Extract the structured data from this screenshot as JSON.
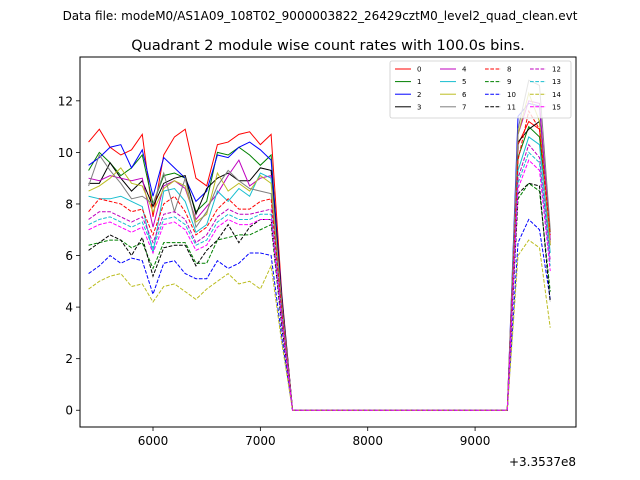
{
  "figure": {
    "suptitle": "Data file: modeM0/AS1A09_108T02_9000003822_26429cztM0_level2_quad_clean.evt"
  },
  "chart_data": {
    "type": "line",
    "title": "Quadrant 2 module wise count rates with 100.0s bins.",
    "xlabel": "",
    "ylabel": "",
    "x_offset_label": "+3.3537e8",
    "xlim": [
      5320,
      9940
    ],
    "ylim": [
      -0.65,
      13.7
    ],
    "x_ticks": [
      6000,
      7000,
      8000,
      9000
    ],
    "x_tick_labels": [
      "6000",
      "7000",
      "8000",
      "9000"
    ],
    "y_ticks": [
      0,
      2,
      4,
      6,
      8,
      10,
      12
    ],
    "y_tick_labels": [
      "0",
      "2",
      "4",
      "6",
      "8",
      "10",
      "12"
    ],
    "legend_position": "top-right",
    "legend_columns": 4,
    "x": [
      5400,
      5500,
      5600,
      5700,
      5800,
      5900,
      6000,
      6100,
      6200,
      6300,
      6400,
      6500,
      6600,
      6700,
      6800,
      6900,
      7000,
      7100,
      7200,
      7300,
      7400,
      7500,
      7600,
      7700,
      7800,
      7900,
      8000,
      8100,
      8200,
      8300,
      8400,
      8500,
      8600,
      8700,
      8800,
      8900,
      9000,
      9100,
      9200,
      9300,
      9400,
      9500,
      9600,
      9700
    ],
    "series": [
      {
        "name": "0",
        "color": "#ff0000",
        "dash": "solid",
        "values": [
          10.4,
          10.9,
          10.2,
          9.9,
          10.1,
          10.7,
          7.5,
          9.9,
          10.6,
          10.9,
          9.0,
          8.7,
          10.3,
          10.4,
          10.7,
          10.8,
          10.3,
          10.7,
          4.5,
          0,
          0,
          0,
          0,
          0,
          0,
          0,
          0,
          0,
          0,
          0,
          0,
          0,
          0,
          0,
          0,
          0,
          0,
          0,
          0,
          0,
          10.3,
          11.2,
          10.9,
          6.5
        ]
      },
      {
        "name": "1",
        "color": "#008000",
        "dash": "solid",
        "values": [
          9.3,
          10.0,
          9.6,
          9.1,
          9.4,
          9.9,
          8.0,
          9.1,
          9.2,
          9.0,
          7.7,
          8.1,
          10.0,
          9.9,
          10.2,
          9.9,
          9.5,
          9.9,
          4.2,
          0,
          0,
          0,
          0,
          0,
          0,
          0,
          0,
          0,
          0,
          0,
          0,
          0,
          0,
          0,
          0,
          0,
          0,
          0,
          0,
          0,
          9.8,
          11.0,
          10.6,
          6.9
        ]
      },
      {
        "name": "2",
        "color": "#0000ff",
        "dash": "solid",
        "values": [
          9.5,
          9.8,
          10.2,
          10.3,
          9.4,
          10.1,
          8.3,
          9.8,
          9.4,
          9.0,
          8.1,
          8.5,
          9.9,
          9.8,
          10.2,
          10.4,
          10.1,
          9.7,
          4.4,
          0,
          0,
          0,
          0,
          0,
          0,
          0,
          0,
          0,
          0,
          0,
          0,
          0,
          0,
          0,
          0,
          0,
          0,
          0,
          0,
          0,
          11.4,
          11.9,
          11.8,
          6.6
        ]
      },
      {
        "name": "3",
        "color": "#000000",
        "dash": "solid",
        "values": [
          8.8,
          8.8,
          9.6,
          9.0,
          8.5,
          8.9,
          7.9,
          8.8,
          9.0,
          9.1,
          7.6,
          8.6,
          9.0,
          9.2,
          8.9,
          8.9,
          9.4,
          9.3,
          4.3,
          0,
          0,
          0,
          0,
          0,
          0,
          0,
          0,
          0,
          0,
          0,
          0,
          0,
          0,
          0,
          0,
          0,
          0,
          0,
          0,
          0,
          10.4,
          10.9,
          11.2,
          6.4
        ]
      },
      {
        "name": "4",
        "color": "#bf00bf",
        "dash": "solid",
        "values": [
          9.0,
          8.9,
          9.1,
          9.0,
          8.9,
          9.0,
          7.1,
          8.7,
          8.9,
          8.6,
          7.4,
          7.9,
          8.4,
          9.1,
          9.7,
          8.7,
          9.0,
          9.1,
          4.1,
          0,
          0,
          0,
          0,
          0,
          0,
          0,
          0,
          0,
          0,
          0,
          0,
          0,
          0,
          0,
          0,
          0,
          0,
          0,
          0,
          0,
          10.7,
          12.0,
          11.9,
          6.6
        ]
      },
      {
        "name": "5",
        "color": "#17becf",
        "dash": "solid",
        "values": [
          8.3,
          8.2,
          8.2,
          8.3,
          8.1,
          7.9,
          6.1,
          8.5,
          8.6,
          8.1,
          6.9,
          7.2,
          8.5,
          8.1,
          8.6,
          8.3,
          9.2,
          9.0,
          4.0,
          0,
          0,
          0,
          0,
          0,
          0,
          0,
          0,
          0,
          0,
          0,
          0,
          0,
          0,
          0,
          0,
          0,
          0,
          0,
          0,
          0,
          9.3,
          10.6,
          10.3,
          6.1
        ]
      },
      {
        "name": "6",
        "color": "#bcbd22",
        "dash": "solid",
        "values": [
          8.5,
          8.7,
          9.0,
          9.4,
          8.8,
          8.7,
          7.7,
          8.6,
          8.9,
          8.7,
          7.3,
          7.6,
          9.2,
          8.5,
          8.8,
          8.5,
          9.1,
          8.8,
          4.1,
          0,
          0,
          0,
          0,
          0,
          0,
          0,
          0,
          0,
          0,
          0,
          0,
          0,
          0,
          0,
          0,
          0,
          0,
          0,
          0,
          0,
          10.7,
          12.3,
          11.2,
          6.4
        ]
      },
      {
        "name": "7",
        "color": "#7f7f7f",
        "dash": "solid",
        "values": [
          8.7,
          9.9,
          9.3,
          8.8,
          8.2,
          8.3,
          8.0,
          9.2,
          7.7,
          9.0,
          7.1,
          7.7,
          8.7,
          9.3,
          8.9,
          8.6,
          8.5,
          8.4,
          4.0,
          0,
          0,
          0,
          0,
          0,
          0,
          0,
          0,
          0,
          0,
          0,
          0,
          0,
          0,
          0,
          0,
          0,
          0,
          0,
          0,
          0,
          10.9,
          12.8,
          12.6,
          7.0
        ]
      },
      {
        "name": "8",
        "color": "#ff0000",
        "dash": "dashed",
        "values": [
          7.7,
          8.2,
          8.1,
          8.0,
          7.7,
          7.8,
          6.8,
          8.0,
          8.3,
          7.7,
          6.8,
          7.1,
          7.8,
          8.2,
          7.8,
          7.8,
          8.1,
          8.2,
          3.8,
          0,
          0,
          0,
          0,
          0,
          0,
          0,
          0,
          0,
          0,
          0,
          0,
          0,
          0,
          0,
          0,
          0,
          0,
          0,
          0,
          0,
          9.7,
          11.6,
          10.9,
          6.8
        ]
      },
      {
        "name": "9",
        "color": "#008000",
        "dash": "dashed",
        "values": [
          6.4,
          6.5,
          6.6,
          6.6,
          6.3,
          6.5,
          5.5,
          6.5,
          6.5,
          6.5,
          5.7,
          5.7,
          6.6,
          6.7,
          6.8,
          6.8,
          7.0,
          7.2,
          3.2,
          0,
          0,
          0,
          0,
          0,
          0,
          0,
          0,
          0,
          0,
          0,
          0,
          0,
          0,
          0,
          0,
          0,
          0,
          0,
          0,
          0,
          8.2,
          8.8,
          8.5,
          4.6
        ]
      },
      {
        "name": "10",
        "color": "#0000ff",
        "dash": "dashed",
        "values": [
          5.3,
          5.6,
          6.0,
          5.7,
          5.9,
          5.8,
          4.5,
          5.7,
          5.8,
          5.3,
          5.1,
          5.1,
          5.8,
          5.5,
          5.7,
          6.1,
          6.1,
          6.0,
          2.8,
          0,
          0,
          0,
          0,
          0,
          0,
          0,
          0,
          0,
          0,
          0,
          0,
          0,
          0,
          0,
          0,
          0,
          0,
          0,
          0,
          0,
          6.5,
          7.4,
          7.0,
          4.3
        ]
      },
      {
        "name": "11",
        "color": "#000000",
        "dash": "dashed",
        "values": [
          6.2,
          6.5,
          6.8,
          6.6,
          6.0,
          6.7,
          5.2,
          6.3,
          6.4,
          6.4,
          5.6,
          6.2,
          6.6,
          7.2,
          6.5,
          7.1,
          7.4,
          7.4,
          3.3,
          0,
          0,
          0,
          0,
          0,
          0,
          0,
          0,
          0,
          0,
          0,
          0,
          0,
          0,
          0,
          0,
          0,
          0,
          0,
          0,
          0,
          8.4,
          8.8,
          8.7,
          4.2
        ]
      },
      {
        "name": "12",
        "color": "#bf00bf",
        "dash": "dashed",
        "values": [
          7.4,
          7.7,
          7.7,
          7.5,
          7.3,
          7.5,
          6.5,
          7.6,
          7.7,
          7.4,
          6.5,
          6.8,
          7.5,
          7.8,
          7.6,
          7.6,
          7.7,
          7.8,
          3.6,
          0,
          0,
          0,
          0,
          0,
          0,
          0,
          0,
          0,
          0,
          0,
          0,
          0,
          0,
          0,
          0,
          0,
          0,
          0,
          0,
          0,
          9.0,
          10.3,
          9.8,
          5.8
        ]
      },
      {
        "name": "13",
        "color": "#17becf",
        "dash": "dashed",
        "values": [
          7.2,
          7.4,
          7.5,
          7.3,
          7.1,
          7.3,
          6.3,
          7.4,
          7.5,
          7.2,
          6.4,
          6.6,
          7.3,
          7.6,
          7.4,
          7.4,
          7.6,
          7.6,
          3.5,
          0,
          0,
          0,
          0,
          0,
          0,
          0,
          0,
          0,
          0,
          0,
          0,
          0,
          0,
          0,
          0,
          0,
          0,
          0,
          0,
          0,
          8.8,
          10.0,
          9.6,
          5.6
        ]
      },
      {
        "name": "14",
        "color": "#bcbd22",
        "dash": "dashed",
        "values": [
          4.7,
          5.0,
          5.2,
          5.3,
          4.8,
          4.9,
          4.2,
          4.8,
          4.9,
          4.6,
          4.3,
          4.7,
          5.0,
          5.3,
          4.9,
          5.0,
          4.7,
          5.6,
          2.6,
          0,
          0,
          0,
          0,
          0,
          0,
          0,
          0,
          0,
          0,
          0,
          0,
          0,
          0,
          0,
          0,
          0,
          0,
          0,
          0,
          0,
          6.0,
          6.6,
          6.3,
          3.2
        ]
      },
      {
        "name": "15",
        "color": "#ff00ff",
        "dash": "dashed",
        "values": [
          7.0,
          7.2,
          7.3,
          7.1,
          6.9,
          7.1,
          6.1,
          7.2,
          7.3,
          7.0,
          6.2,
          6.4,
          7.1,
          7.4,
          7.2,
          7.2,
          7.4,
          7.4,
          3.4,
          0,
          0,
          0,
          0,
          0,
          0,
          0,
          0,
          0,
          0,
          0,
          0,
          0,
          0,
          0,
          0,
          0,
          0,
          0,
          0,
          0,
          8.6,
          9.7,
          9.3,
          5.4
        ]
      }
    ]
  }
}
